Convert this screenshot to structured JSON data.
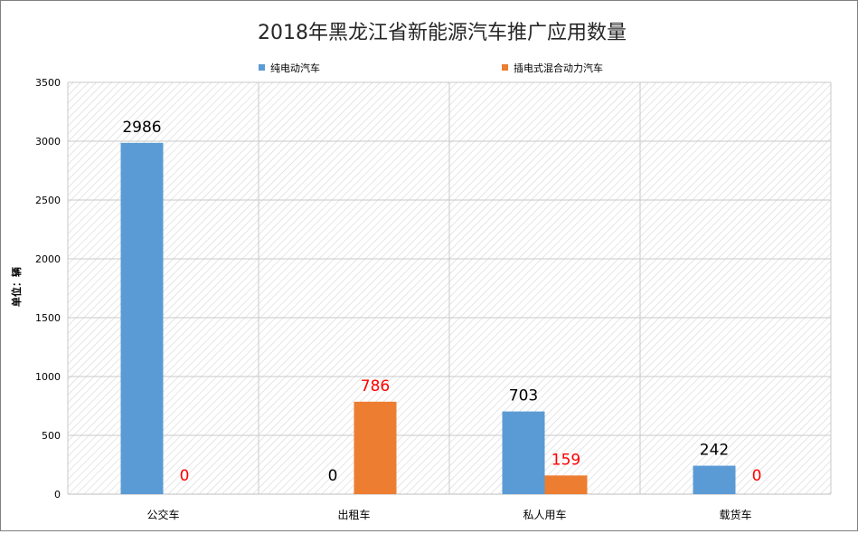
{
  "chart_data": {
    "type": "bar",
    "title": "2018年黑龙江省新能源汽车推广应用数量",
    "ylabel": "单位：辆",
    "xlabel": "",
    "categories": [
      "公交车",
      "出租车",
      "私人用车",
      "载货车"
    ],
    "series": [
      {
        "name": "纯电动汽车",
        "color": "#5B9BD5",
        "label_color": "#000000",
        "values": [
          2986,
          0,
          703,
          242
        ]
      },
      {
        "name": "插电式混合动力汽车",
        "color": "#ED7D31",
        "label_color": "#FF0000",
        "values": [
          0,
          786,
          159,
          0
        ]
      }
    ],
    "ylim": [
      0,
      3500
    ],
    "yticks": [
      0,
      500,
      1000,
      1500,
      2000,
      2500,
      3000,
      3500
    ],
    "grid": true,
    "legend_position": "top"
  }
}
